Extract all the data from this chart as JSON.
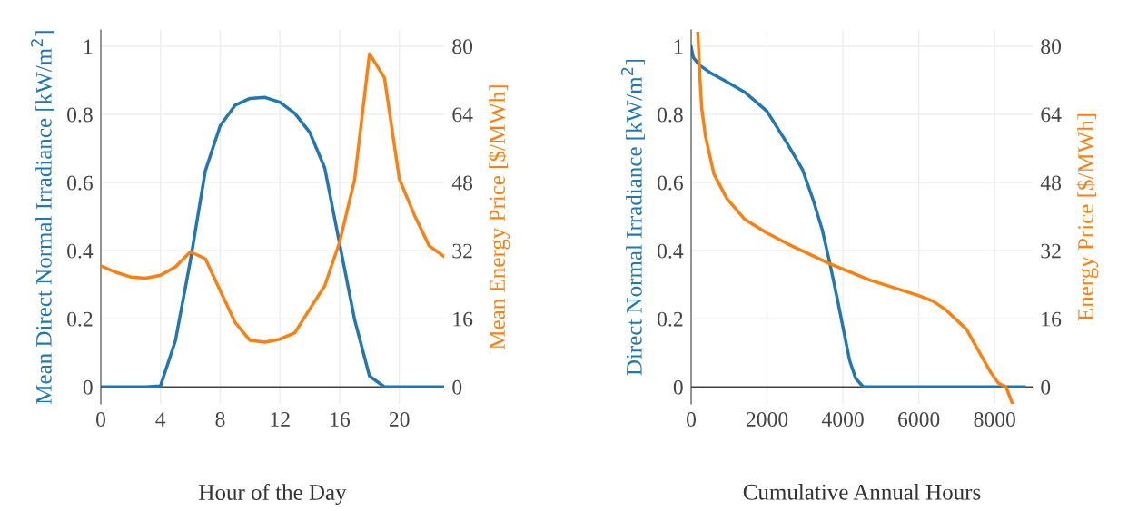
{
  "chart_data": [
    {
      "type": "line",
      "xlabel": "Hour of the Day",
      "ylabel": "Mean Direct Normal Irradiance [kW/m$^{2}$]",
      "y2label": "Mean Energy Price [$/MWh]",
      "xlim": [
        0,
        23
      ],
      "xticks": [
        0,
        4,
        8,
        12,
        16,
        20
      ],
      "ylim": [
        -0.05,
        1.048
      ],
      "yticks": [
        0,
        0.2,
        0.4,
        0.6,
        0.8,
        1
      ],
      "y2lim": [
        -4,
        83.8
      ],
      "y2ticks": [
        0,
        16,
        32,
        48,
        64,
        80
      ],
      "grid": true,
      "marker": "none",
      "line_style": "solid",
      "series": [
        {
          "color": "#1f77b4",
          "x": [
            0,
            1,
            2,
            3,
            4,
            5,
            6,
            7,
            8,
            9,
            10,
            11,
            12,
            13,
            14,
            15,
            16,
            17,
            18,
            19,
            20,
            21,
            22,
            23
          ],
          "values": [
            0,
            0,
            0,
            0,
            0.003,
            0.136,
            0.37,
            0.634,
            0.767,
            0.827,
            0.847,
            0.85,
            0.836,
            0.803,
            0.747,
            0.643,
            0.42,
            0.198,
            0.032,
            0,
            0,
            0,
            0,
            0
          ]
        },
        {
          "color": "#ff7f0e",
          "axis": "y2",
          "x": [
            0,
            1,
            2,
            3,
            4,
            5,
            6,
            7,
            8,
            9,
            10,
            11,
            12,
            13,
            14,
            15,
            16,
            17,
            18,
            19,
            20,
            21,
            22,
            23
          ],
          "values": [
            28.4,
            26.9,
            25.8,
            25.5,
            26.2,
            28.2,
            31.7,
            30.1,
            22.6,
            15.1,
            10.9,
            10.5,
            11.2,
            12.7,
            18.3,
            23.7,
            34.0,
            48.6,
            78.2,
            72.6,
            48.8,
            40.4,
            33.1,
            30.6
          ]
        }
      ]
    },
    {
      "type": "line",
      "xlabel": "Cumulative Annual Hours",
      "ylabel": "Direct Normal Irradiance [kW/m$^{2}$]",
      "y2label": "Energy Price [$/MWh]",
      "xlim": [
        0,
        9000
      ],
      "xticks": [
        0,
        2000,
        4000,
        6000,
        8000
      ],
      "ylim": [
        -0.05,
        1.048
      ],
      "yticks": [
        0,
        0.2,
        0.4,
        0.6,
        0.8,
        1
      ],
      "y2lim": [
        -4,
        83.8
      ],
      "y2ticks": [
        0,
        16,
        32,
        48,
        64,
        80
      ],
      "grid": true,
      "marker": "none",
      "line_style": "solid",
      "series": [
        {
          "color": "#1f77b4",
          "x": [
            0,
            56,
            216,
            496,
            936,
            1416,
            2000,
            2536,
            2936,
            3216,
            3456,
            3656,
            3856,
            4016,
            4176,
            4336,
            4536,
            8776
          ],
          "values": [
            0.998,
            0.967,
            0.945,
            0.923,
            0.896,
            0.865,
            0.809,
            0.714,
            0.638,
            0.549,
            0.461,
            0.363,
            0.256,
            0.167,
            0.078,
            0.025,
            0,
            0
          ]
        },
        {
          "color": "#ff7f0e",
          "axis": "y2",
          "x": [
            176,
            232,
            280,
            376,
            600,
            936,
            1416,
            2000,
            2536,
            3656,
            4696,
            5976,
            6376,
            6696,
            7256,
            7896,
            8096,
            8296,
            8470
          ],
          "values": [
            83,
            72.4,
            65.3,
            58.9,
            50.0,
            44.3,
            39.3,
            36.1,
            33.6,
            28.9,
            25.1,
            21.5,
            20.1,
            18.2,
            13.5,
            3.4,
            0.9,
            0,
            -4
          ]
        }
      ]
    }
  ]
}
